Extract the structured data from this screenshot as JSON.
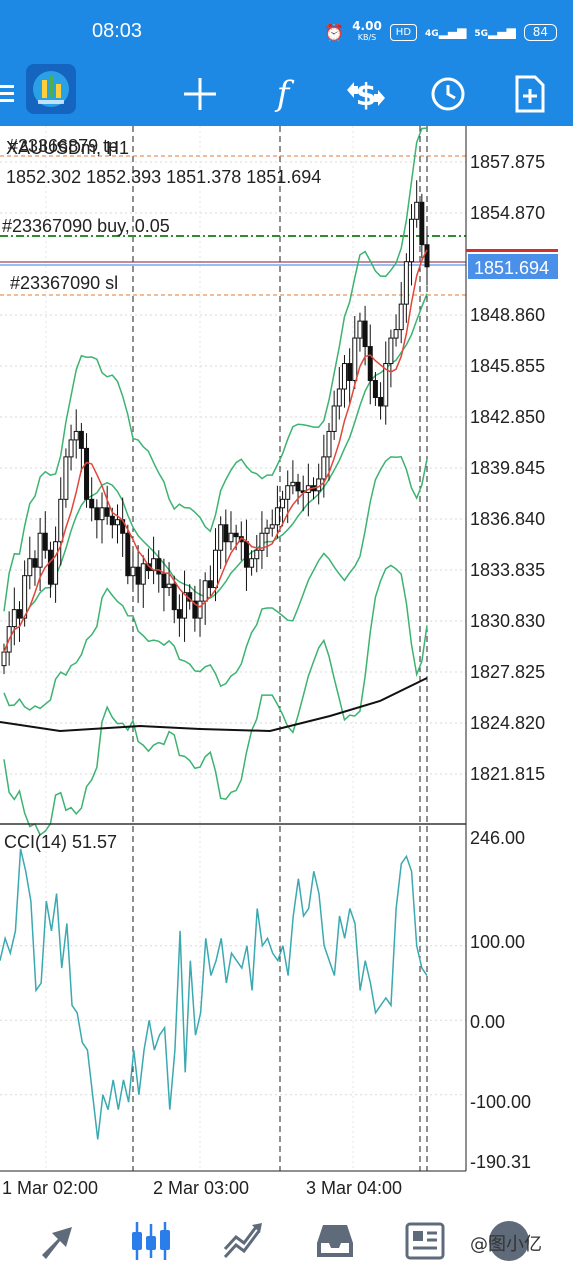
{
  "status_bar": {
    "time": "08:03",
    "net_speed": "4.00",
    "net_unit": "KB/S",
    "hd": "HD",
    "signal": "4G",
    "signal2": "5G",
    "battery": "84"
  },
  "toolbar": {
    "items": [
      "menu-icon",
      "app-logo-icon",
      "crosshair-icon",
      "indicators-icon",
      "trade-icon",
      "timeframe-icon",
      "new-order-icon"
    ]
  },
  "chart": {
    "symbol_title": "XAUUSDm, H1",
    "tp_label": "#23366879 tp",
    "ohlc": "1852.302 1852.393 1851.378 1851.694",
    "buy_label": "#23367090 buy, 0.05",
    "sl_label": "#23367090 sl",
    "price_axis": [
      "1857.875",
      "1854.870",
      "1848.860",
      "1845.855",
      "1842.850",
      "1839.845",
      "1836.840",
      "1833.835",
      "1830.830",
      "1827.825",
      "1824.820",
      "1821.815"
    ],
    "current_price": "1851.694",
    "time_axis": [
      "1 Mar 02:00",
      "2 Mar 03:00",
      "3 Mar 04:00"
    ],
    "colors": {
      "bands": "#3cb371",
      "ma": "#e0473a",
      "long_ma": "#111111",
      "cci": "#3aa9b0",
      "buy_line": "#2e8b2e",
      "sl_line": "#e07b39",
      "current": "#2b7de9"
    }
  },
  "cci": {
    "label": "CCI(14) 51.57",
    "axis": [
      "246.00",
      "100.00",
      "0.00",
      "-100.00",
      "-190.31"
    ],
    "values": [
      80,
      110,
      90,
      120,
      230,
      200,
      160,
      40,
      50,
      160,
      120,
      170,
      70,
      130,
      20,
      10,
      -30,
      -40,
      -100,
      -160,
      -100,
      -120,
      -80,
      -120,
      -80,
      -110,
      -40,
      -100,
      -40,
      0,
      -40,
      -20,
      -10,
      -120,
      -40,
      120,
      -70,
      80,
      -20,
      10,
      110,
      60,
      80,
      110,
      50,
      90,
      80,
      70,
      100,
      40,
      150,
      100,
      110,
      90,
      80,
      100,
      60,
      140,
      190,
      140,
      150,
      200,
      170,
      100,
      80,
      60,
      140,
      110,
      150,
      130,
      40,
      80,
      50,
      10,
      20,
      30,
      20,
      150,
      210,
      220,
      200,
      100,
      70,
      60
    ]
  },
  "bottom_nav": {
    "items": [
      "quotes-icon",
      "chart-icon",
      "trade-icon",
      "history-icon",
      "news-icon",
      "messages-icon"
    ],
    "watermark": "@图小亿"
  }
}
